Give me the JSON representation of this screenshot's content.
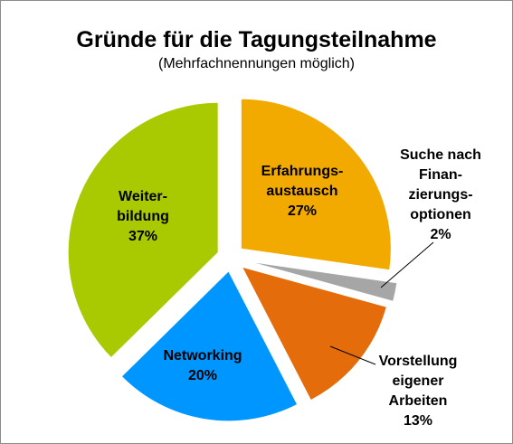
{
  "chart_data": {
    "type": "pie",
    "title": "Gründe für die Tagungsteilnahme",
    "subtitle": "(Mehrfachnennungen möglich)",
    "slices": [
      {
        "label_lines": [
          "Erfahrungs-",
          "austausch"
        ],
        "value": 27,
        "value_label": "27%",
        "color": "#f2a900"
      },
      {
        "label_lines": [
          "Suche nach",
          "Finan-",
          "zierungs-",
          "optionen"
        ],
        "value": 2,
        "value_label": "2%",
        "color": "#a6a6a6"
      },
      {
        "label_lines": [
          "Vorstellung",
          "eigener",
          "Arbeiten"
        ],
        "value": 13,
        "value_label": "13%",
        "color": "#e46c0a"
      },
      {
        "label_lines": [
          "Networking"
        ],
        "value": 20,
        "value_label": "20%",
        "color": "#0096ff"
      },
      {
        "label_lines": [
          "Weiter-",
          "bildung"
        ],
        "value": 37,
        "value_label": "37%",
        "color": "#a9c900"
      }
    ],
    "legend": "none"
  }
}
